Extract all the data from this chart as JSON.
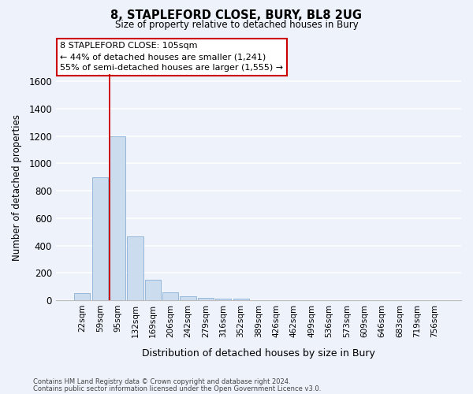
{
  "title": "8, STAPLEFORD CLOSE, BURY, BL8 2UG",
  "subtitle": "Size of property relative to detached houses in Bury",
  "xlabel": "Distribution of detached houses by size in Bury",
  "ylabel": "Number of detached properties",
  "footnote1": "Contains HM Land Registry data © Crown copyright and database right 2024.",
  "footnote2": "Contains public sector information licensed under the Open Government Licence v3.0.",
  "categories": [
    "22sqm",
    "59sqm",
    "95sqm",
    "132sqm",
    "169sqm",
    "206sqm",
    "242sqm",
    "279sqm",
    "316sqm",
    "352sqm",
    "389sqm",
    "426sqm",
    "462sqm",
    "499sqm",
    "536sqm",
    "573sqm",
    "609sqm",
    "646sqm",
    "683sqm",
    "719sqm",
    "756sqm"
  ],
  "values": [
    55,
    900,
    1200,
    465,
    150,
    60,
    30,
    20,
    15,
    12,
    0,
    0,
    0,
    0,
    0,
    0,
    0,
    0,
    0,
    0,
    0
  ],
  "bar_color": "#ccdcef",
  "bar_edge_color": "#8ab0d4",
  "background_color": "#edf2fb",
  "grid_color": "#ffffff",
  "vline_color": "#cc0000",
  "vline_x_index": 2,
  "annotation_text": "8 STAPLEFORD CLOSE: 105sqm\n← 44% of detached houses are smaller (1,241)\n55% of semi-detached houses are larger (1,555) →",
  "annotation_box_facecolor": "#ffffff",
  "annotation_box_edgecolor": "#cc0000",
  "ylim": [
    0,
    1650
  ],
  "yticks": [
    0,
    200,
    400,
    600,
    800,
    1000,
    1200,
    1400,
    1600
  ]
}
